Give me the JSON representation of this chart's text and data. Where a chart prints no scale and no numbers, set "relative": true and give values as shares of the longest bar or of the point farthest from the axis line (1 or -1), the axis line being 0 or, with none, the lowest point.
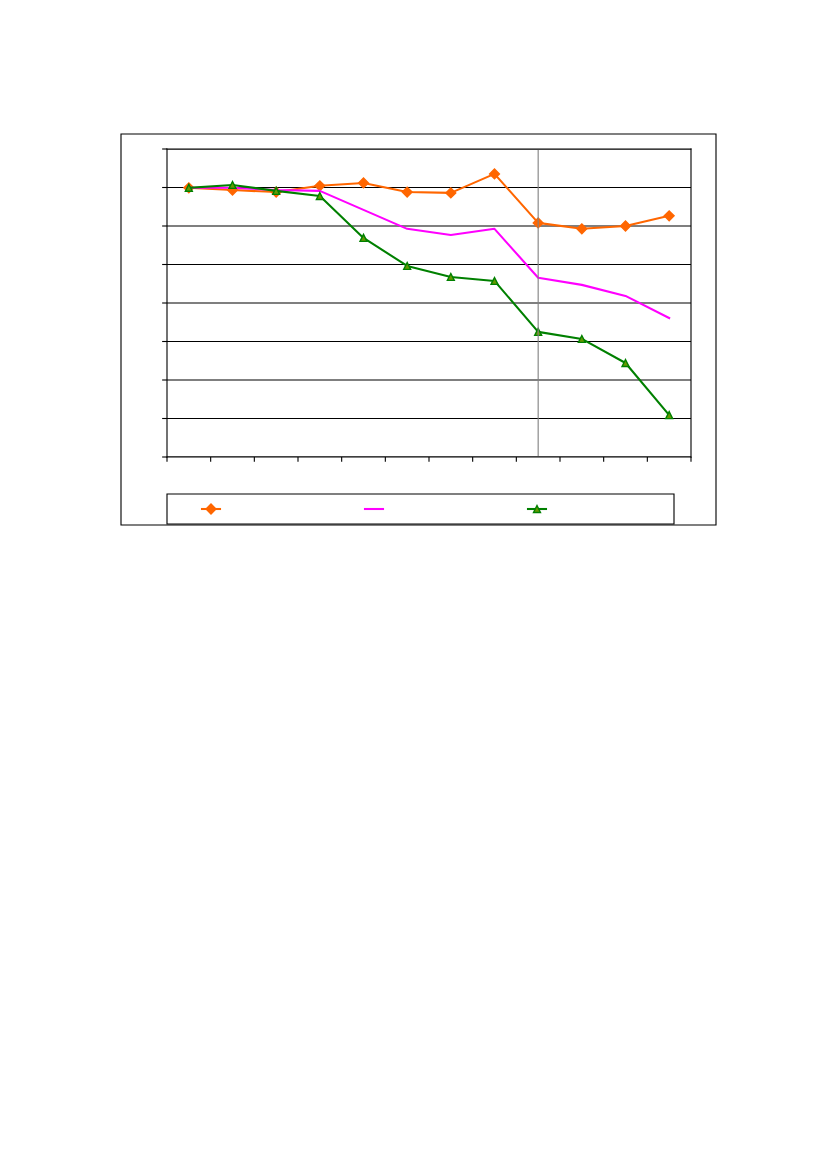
{
  "chart_data": {
    "type": "line",
    "relative": true,
    "categories": [
      null,
      null,
      null,
      null,
      null,
      null,
      null,
      null,
      null,
      null,
      null,
      null
    ],
    "series": [
      {
        "color": "#ff6600",
        "marker": "diamond",
        "values": [
          0.951,
          0.943,
          0.936,
          0.958,
          0.968,
          0.936,
          0.933,
          1,
          0.827,
          0.806,
          0.816,
          0.852
        ]
      },
      {
        "color": "#ff00ff",
        "marker": "none",
        "values": [
          0.951,
          0.951,
          0.943,
          0.94,
          0.873,
          0.806,
          0.784,
          0.806,
          0.633,
          0.608,
          0.569,
          0.491
        ]
      },
      {
        "color": "#008000",
        "marker": "triangle",
        "values": [
          0.951,
          0.961,
          0.94,
          0.922,
          0.774,
          0.675,
          0.636,
          0.622,
          0.442,
          0.417,
          0.332,
          0.148
        ]
      }
    ],
    "grid": "y"
  }
}
